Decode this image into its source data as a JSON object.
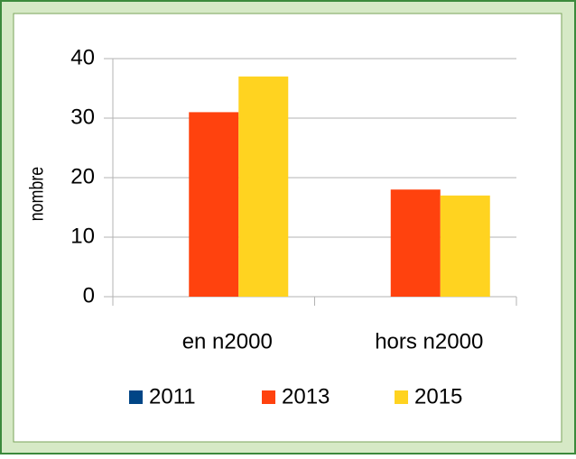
{
  "chart_data": {
    "type": "bar",
    "ylabel": "nombre",
    "categories": [
      "en n2000",
      "hors n2000"
    ],
    "series": [
      {
        "name": "2011",
        "color": "#004586",
        "values": [
          0,
          0
        ]
      },
      {
        "name": "2013",
        "color": "#ff420e",
        "values": [
          31,
          18
        ]
      },
      {
        "name": "2015",
        "color": "#ffd320",
        "values": [
          37,
          17
        ]
      }
    ],
    "ylim": [
      0,
      40
    ],
    "yticks": [
      0,
      10,
      20,
      30,
      40
    ],
    "grid": true,
    "legend": "bottom"
  }
}
